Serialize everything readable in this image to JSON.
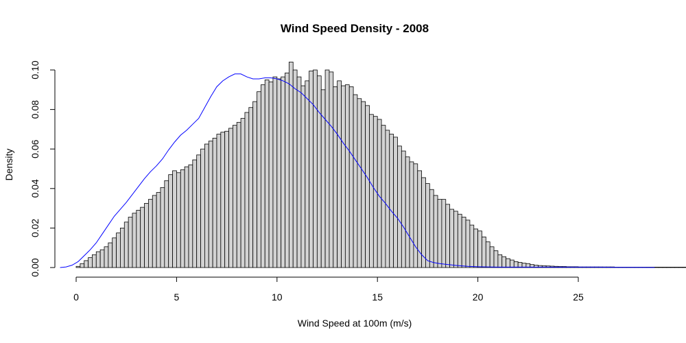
{
  "chart_data": {
    "type": "bar",
    "title": "Wind Speed Density - 2008",
    "xlabel": "Wind Speed at 100m (m/s)",
    "ylabel": "Density",
    "xlim": [
      -1.0,
      28.8
    ],
    "ylim": [
      0,
      0.1
    ],
    "x_ticks": [
      0,
      5,
      10,
      15,
      20,
      25
    ],
    "y_ticks": [
      0.0,
      0.02,
      0.04,
      0.06,
      0.08,
      0.1
    ],
    "x_tick_labels": [
      "0",
      "5",
      "10",
      "15",
      "20",
      "25"
    ],
    "y_tick_labels": [
      "0.00",
      "0.02",
      "0.04",
      "0.06",
      "0.08",
      "0.10"
    ],
    "bin_width": 0.2,
    "bin_start": 0.0,
    "bar_fill": "#d3d3d3",
    "bar_stroke": "#000000",
    "density_color": "#0000ff",
    "values": [
      0.0006,
      0.002,
      0.0035,
      0.005,
      0.0065,
      0.008,
      0.009,
      0.0105,
      0.0125,
      0.015,
      0.0175,
      0.02,
      0.023,
      0.0255,
      0.0275,
      0.029,
      0.0305,
      0.0325,
      0.0345,
      0.0365,
      0.038,
      0.0405,
      0.044,
      0.047,
      0.049,
      0.048,
      0.0495,
      0.051,
      0.052,
      0.0545,
      0.057,
      0.06,
      0.0625,
      0.064,
      0.0655,
      0.0675,
      0.0685,
      0.069,
      0.0705,
      0.072,
      0.0735,
      0.0755,
      0.0785,
      0.081,
      0.084,
      0.089,
      0.0925,
      0.095,
      0.094,
      0.0965,
      0.0955,
      0.0965,
      0.0985,
      0.104,
      0.1,
      0.0965,
      0.092,
      0.0945,
      0.0995,
      0.1,
      0.097,
      0.09,
      0.1,
      0.099,
      0.0915,
      0.0945,
      0.092,
      0.0925,
      0.0915,
      0.0875,
      0.0855,
      0.084,
      0.082,
      0.0775,
      0.0765,
      0.075,
      0.072,
      0.0695,
      0.0675,
      0.066,
      0.0615,
      0.059,
      0.056,
      0.0535,
      0.0525,
      0.049,
      0.0455,
      0.0425,
      0.0395,
      0.0365,
      0.0345,
      0.0345,
      0.032,
      0.0295,
      0.0285,
      0.027,
      0.0255,
      0.024,
      0.0215,
      0.0195,
      0.0185,
      0.0155,
      0.013,
      0.0105,
      0.0085,
      0.0065,
      0.0055,
      0.0045,
      0.0038,
      0.003,
      0.0026,
      0.0022,
      0.002,
      0.0015,
      0.0012,
      0.001,
      0.0009,
      0.0008,
      0.0007,
      0.0006,
      0.0005,
      0.0005,
      0.0004,
      0.0004,
      0.0004,
      0.0003,
      0.0003,
      0.0003,
      0.0003,
      0.0003,
      0.0003,
      0.0003,
      0.0003,
      0.0003,
      0.0002,
      0.0002,
      0.0002,
      0.0002,
      0.0002,
      0.0002,
      0.0002,
      0.0002,
      0.0002,
      0.0002,
      0.0002,
      0.0002,
      0.0002,
      0.0002,
      0.0002,
      0.0002,
      0.0002,
      0.0002,
      0.0002,
      0.0002,
      0.0002,
      0.0002,
      0.0002,
      0.0002,
      0.0002,
      0.0002,
      0.0002,
      0.0002,
      0.0002,
      0.0002,
      0.0002,
      0.0002,
      0.0002,
      0.0002,
      0.0002,
      0.0002,
      0.0002
    ],
    "density_curve": {
      "x": [
        -0.8,
        -0.5,
        -0.2,
        0.1,
        0.4,
        0.7,
        1.0,
        1.3,
        1.6,
        1.9,
        2.2,
        2.5,
        2.8,
        3.1,
        3.4,
        3.7,
        4.0,
        4.3,
        4.6,
        4.9,
        5.2,
        5.5,
        5.8,
        6.1,
        6.4,
        6.7,
        7.0,
        7.3,
        7.6,
        7.9,
        8.2,
        8.5,
        8.8,
        9.1,
        9.4,
        9.7,
        10.0,
        10.3,
        10.6,
        10.9,
        11.2,
        11.5,
        11.8,
        12.1,
        12.4,
        12.7,
        13.0,
        13.3,
        13.6,
        13.9,
        14.2,
        14.5,
        14.8,
        15.1,
        15.4,
        15.7,
        16.0,
        16.3,
        16.6,
        16.9,
        17.2,
        17.5,
        17.8,
        18.1,
        18.5,
        19.0,
        19.5,
        20.0,
        20.5,
        21.0,
        21.5,
        22.0,
        23.0,
        24.0,
        25.0,
        26.0,
        27.0,
        28.0,
        28.8
      ],
      "y": [
        0.0,
        0.0003,
        0.0012,
        0.003,
        0.006,
        0.009,
        0.0125,
        0.017,
        0.0215,
        0.026,
        0.0295,
        0.033,
        0.037,
        0.041,
        0.045,
        0.0485,
        0.0515,
        0.055,
        0.0595,
        0.0635,
        0.067,
        0.0695,
        0.0725,
        0.0755,
        0.081,
        0.0865,
        0.0915,
        0.0945,
        0.0965,
        0.098,
        0.098,
        0.0965,
        0.0955,
        0.0955,
        0.096,
        0.096,
        0.0955,
        0.0945,
        0.093,
        0.0905,
        0.0885,
        0.0855,
        0.0825,
        0.0785,
        0.075,
        0.0715,
        0.0675,
        0.063,
        0.059,
        0.0545,
        0.05,
        0.0455,
        0.0405,
        0.036,
        0.0325,
        0.0285,
        0.025,
        0.0205,
        0.0155,
        0.0105,
        0.0065,
        0.0035,
        0.0025,
        0.002,
        0.0015,
        0.001,
        0.0006,
        0.0004,
        0.0003,
        0.0002,
        0.0002,
        0.0002,
        0.0002,
        0.0002,
        0.0002,
        0.0002,
        0.0001,
        0.0001,
        0.0
      ]
    }
  }
}
